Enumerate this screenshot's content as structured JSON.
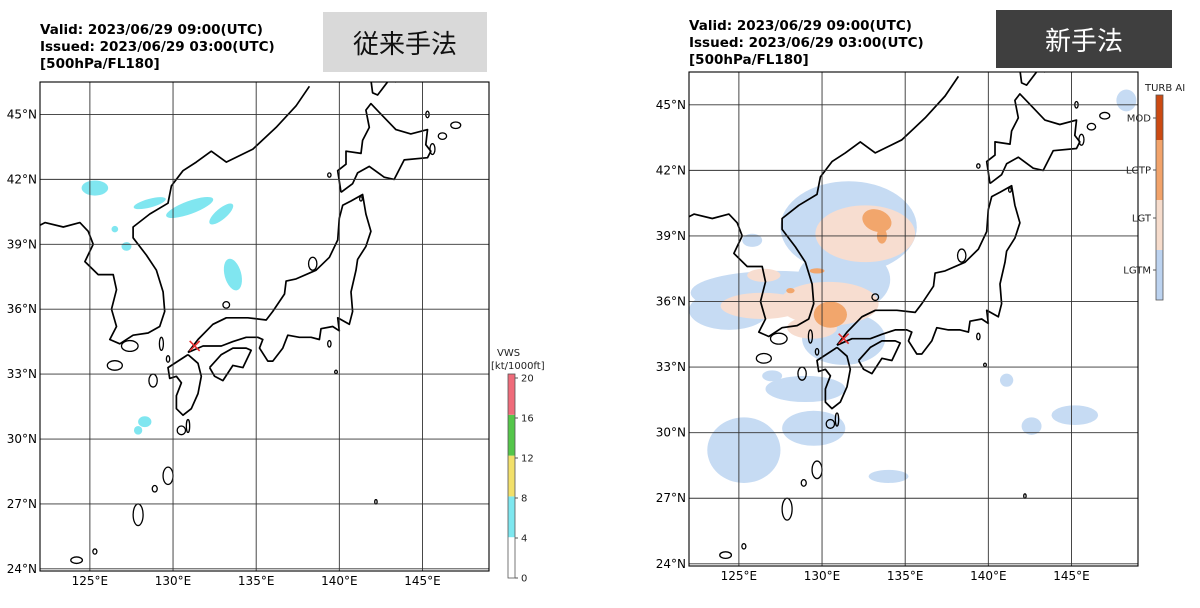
{
  "panels": [
    {
      "valid": "Valid: 2023/06/29 09:00(UTC)",
      "issued": "Issued: 2023/06/29 03:00(UTC)",
      "level": "[500hPa/FL180]",
      "method": "従来手法",
      "colorbar": {
        "title_line1": "VWS",
        "title_line2": "[kt/1000ft]",
        "ticks": [
          "0",
          "4",
          "8",
          "12",
          "16",
          "20"
        ],
        "colors": [
          "#ffffff",
          "#ffffff",
          "#7ee7ef",
          "#f2e06a",
          "#54c64a",
          "#ef6b7a"
        ]
      }
    },
    {
      "valid": "Valid: 2023/06/29 09:00(UTC)",
      "issued": "Issued: 2023/06/29 03:00(UTC)",
      "level": "[500hPa/FL180]",
      "method": "新手法",
      "colorbar": {
        "title": "TURB AI",
        "labels": [
          "MOD",
          "LGTP",
          "LGT",
          "LGTM"
        ],
        "colors": [
          "#cc4a12",
          "#f2a36a",
          "#f6dccc",
          "#bcd3f0"
        ]
      }
    }
  ],
  "map": {
    "lon_ticks": [
      "125°E",
      "130°E",
      "135°E",
      "140°E",
      "145°E"
    ],
    "lat_ticks": [
      "45°N",
      "42°N",
      "39°N",
      "36°N",
      "33°N",
      "30°N",
      "27°N",
      "24°N"
    ],
    "lon_range": [
      122,
      149
    ],
    "lat_range": [
      23.9,
      46.5
    ],
    "marker": {
      "lon": 131.3,
      "lat": 34.3,
      "color": "#e53030"
    }
  }
}
